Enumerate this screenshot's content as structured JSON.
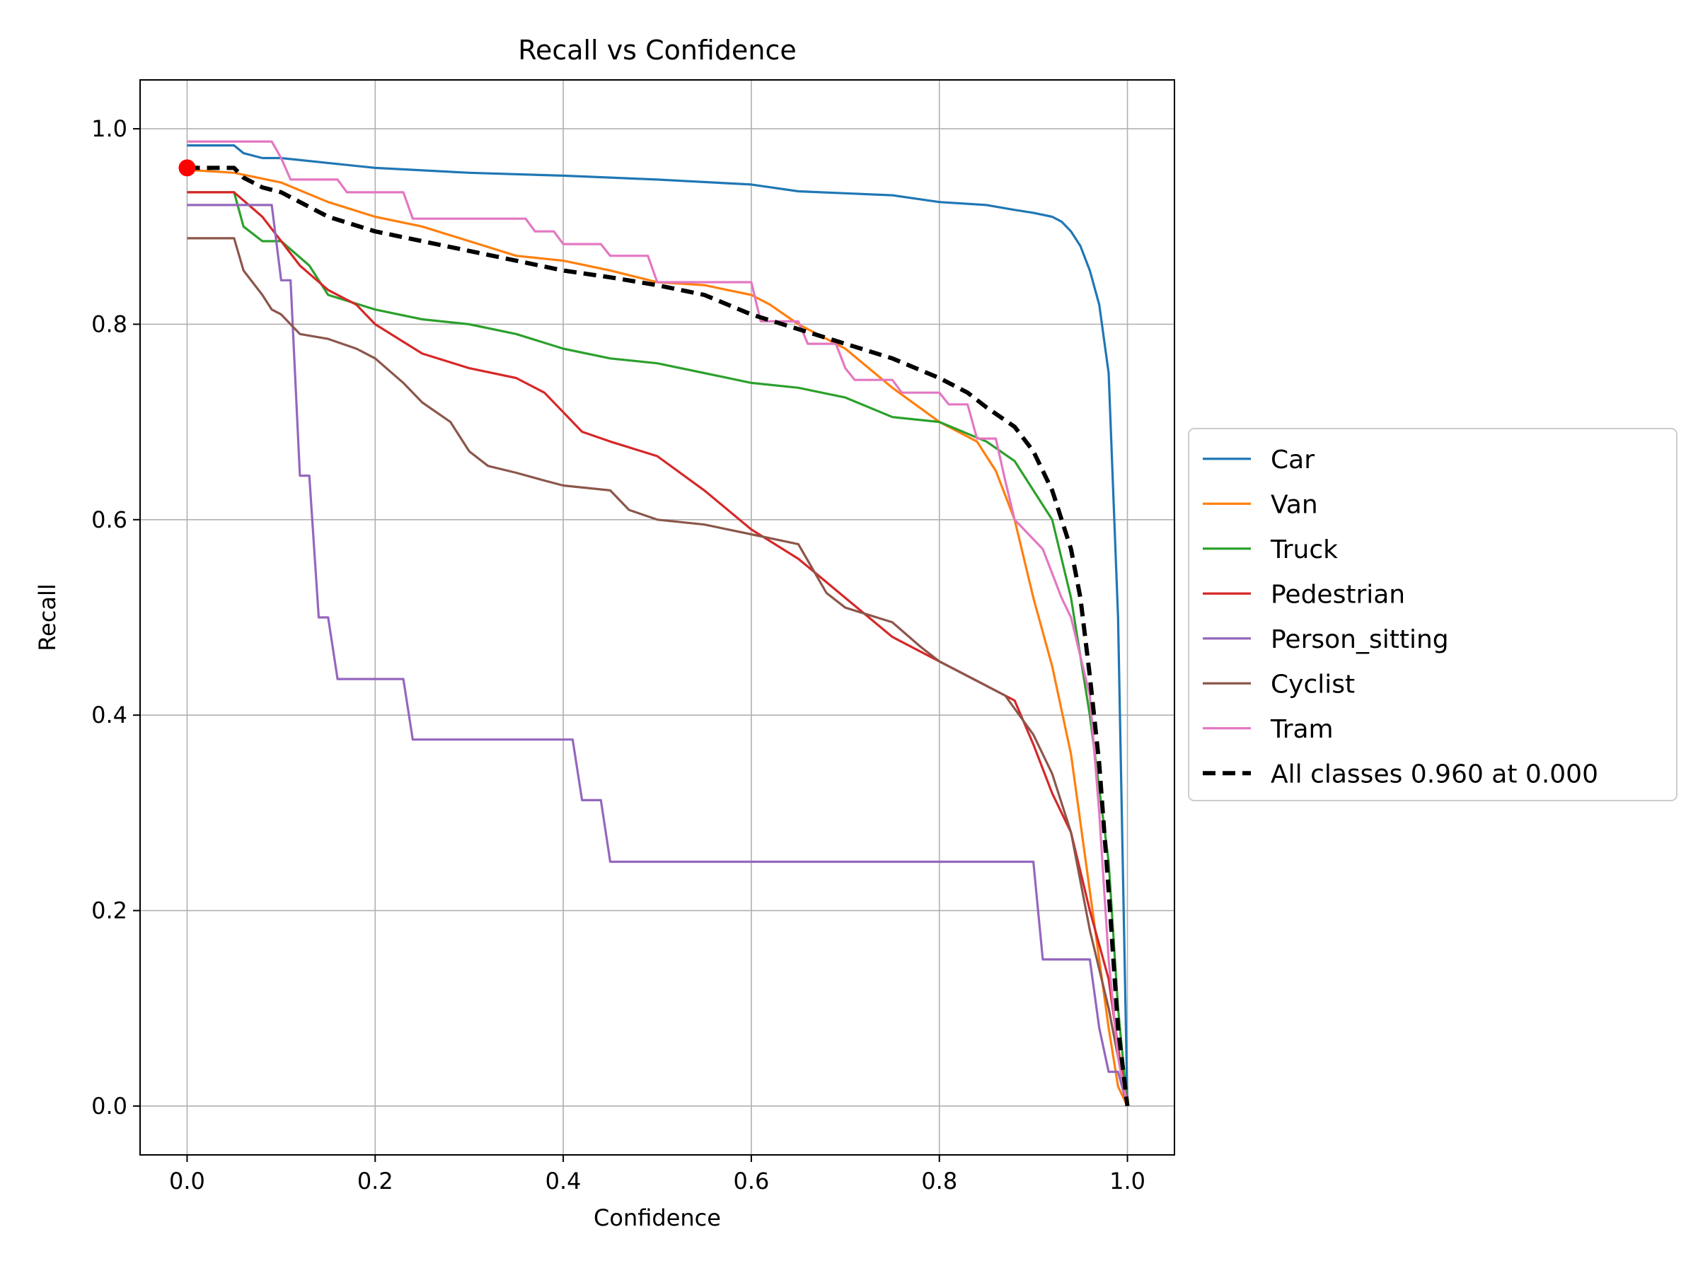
{
  "chart_data": {
    "type": "line",
    "title": "Recall vs Confidence",
    "xlabel": "Confidence",
    "ylabel": "Recall",
    "xlim": [
      -0.05,
      1.05
    ],
    "ylim": [
      -0.05,
      1.05
    ],
    "xticks": [
      0.0,
      0.2,
      0.4,
      0.6,
      0.8,
      1.0
    ],
    "xtick_labels": [
      "0.0",
      "0.2",
      "0.4",
      "0.6",
      "0.8",
      "1.0"
    ],
    "yticks": [
      0.0,
      0.2,
      0.4,
      0.6,
      0.8,
      1.0
    ],
    "ytick_labels": [
      "0.0",
      "0.2",
      "0.4",
      "0.6",
      "0.8",
      "1.0"
    ],
    "grid": true,
    "legend_position": "center-right-outside",
    "series": [
      {
        "name": "Car",
        "color": "#1f77b4",
        "dash": "solid",
        "x": [
          0.0,
          0.05,
          0.06,
          0.08,
          0.1,
          0.2,
          0.3,
          0.4,
          0.5,
          0.6,
          0.65,
          0.7,
          0.75,
          0.8,
          0.85,
          0.88,
          0.9,
          0.92,
          0.93,
          0.94,
          0.95,
          0.96,
          0.97,
          0.98,
          0.99,
          1.0
        ],
        "y": [
          0.983,
          0.983,
          0.975,
          0.97,
          0.97,
          0.96,
          0.955,
          0.952,
          0.948,
          0.943,
          0.936,
          0.934,
          0.932,
          0.925,
          0.922,
          0.917,
          0.914,
          0.91,
          0.905,
          0.895,
          0.88,
          0.855,
          0.82,
          0.75,
          0.5,
          0.0
        ]
      },
      {
        "name": "Van",
        "color": "#ff7f0e",
        "dash": "solid",
        "x": [
          0.0,
          0.05,
          0.1,
          0.15,
          0.2,
          0.25,
          0.3,
          0.35,
          0.4,
          0.45,
          0.5,
          0.55,
          0.6,
          0.62,
          0.65,
          0.7,
          0.75,
          0.8,
          0.84,
          0.86,
          0.88,
          0.9,
          0.92,
          0.94,
          0.96,
          0.98,
          0.99,
          1.0
        ],
        "y": [
          0.958,
          0.955,
          0.945,
          0.925,
          0.91,
          0.9,
          0.885,
          0.87,
          0.865,
          0.855,
          0.843,
          0.84,
          0.83,
          0.82,
          0.8,
          0.775,
          0.735,
          0.7,
          0.68,
          0.65,
          0.6,
          0.52,
          0.45,
          0.36,
          0.22,
          0.08,
          0.02,
          0.0
        ]
      },
      {
        "name": "Truck",
        "color": "#2ca02c",
        "dash": "solid",
        "x": [
          0.0,
          0.05,
          0.06,
          0.08,
          0.1,
          0.13,
          0.15,
          0.2,
          0.25,
          0.3,
          0.35,
          0.4,
          0.45,
          0.5,
          0.55,
          0.6,
          0.65,
          0.7,
          0.75,
          0.8,
          0.85,
          0.88,
          0.9,
          0.92,
          0.94,
          0.96,
          0.98,
          0.99,
          1.0
        ],
        "y": [
          0.935,
          0.935,
          0.9,
          0.885,
          0.885,
          0.86,
          0.83,
          0.815,
          0.805,
          0.8,
          0.79,
          0.775,
          0.765,
          0.76,
          0.75,
          0.74,
          0.735,
          0.725,
          0.705,
          0.7,
          0.68,
          0.66,
          0.63,
          0.6,
          0.52,
          0.4,
          0.25,
          0.1,
          0.0
        ]
      },
      {
        "name": "Pedestrian",
        "color": "#d62728",
        "dash": "solid",
        "x": [
          0.0,
          0.05,
          0.08,
          0.1,
          0.12,
          0.15,
          0.18,
          0.2,
          0.25,
          0.3,
          0.35,
          0.38,
          0.4,
          0.42,
          0.45,
          0.5,
          0.55,
          0.6,
          0.65,
          0.7,
          0.75,
          0.8,
          0.85,
          0.88,
          0.9,
          0.92,
          0.94,
          0.96,
          0.98,
          0.99,
          1.0
        ],
        "y": [
          0.935,
          0.935,
          0.91,
          0.885,
          0.86,
          0.835,
          0.82,
          0.8,
          0.77,
          0.755,
          0.745,
          0.73,
          0.71,
          0.69,
          0.68,
          0.665,
          0.63,
          0.59,
          0.56,
          0.52,
          0.48,
          0.455,
          0.43,
          0.415,
          0.37,
          0.32,
          0.28,
          0.2,
          0.13,
          0.06,
          0.0
        ]
      },
      {
        "name": "Person_sitting",
        "color": "#9467bd",
        "dash": "solid",
        "x": [
          0.0,
          0.09,
          0.1,
          0.11,
          0.12,
          0.13,
          0.14,
          0.15,
          0.16,
          0.23,
          0.24,
          0.41,
          0.42,
          0.44,
          0.45,
          0.9,
          0.91,
          0.96,
          0.97,
          0.98,
          0.99,
          1.0
        ],
        "y": [
          0.922,
          0.922,
          0.845,
          0.845,
          0.645,
          0.645,
          0.5,
          0.5,
          0.437,
          0.437,
          0.375,
          0.375,
          0.313,
          0.313,
          0.25,
          0.25,
          0.15,
          0.15,
          0.08,
          0.035,
          0.035,
          0.0
        ]
      },
      {
        "name": "Cyclist",
        "color": "#8c564b",
        "dash": "solid",
        "x": [
          0.0,
          0.05,
          0.06,
          0.08,
          0.09,
          0.1,
          0.12,
          0.15,
          0.18,
          0.2,
          0.23,
          0.25,
          0.28,
          0.3,
          0.32,
          0.35,
          0.38,
          0.4,
          0.45,
          0.47,
          0.5,
          0.55,
          0.6,
          0.65,
          0.68,
          0.7,
          0.75,
          0.78,
          0.8,
          0.85,
          0.87,
          0.9,
          0.92,
          0.94,
          0.96,
          0.98,
          0.99,
          1.0
        ],
        "y": [
          0.888,
          0.888,
          0.855,
          0.83,
          0.815,
          0.81,
          0.79,
          0.785,
          0.775,
          0.765,
          0.74,
          0.72,
          0.7,
          0.67,
          0.655,
          0.648,
          0.64,
          0.635,
          0.63,
          0.61,
          0.6,
          0.595,
          0.585,
          0.575,
          0.525,
          0.51,
          0.495,
          0.47,
          0.455,
          0.43,
          0.42,
          0.38,
          0.34,
          0.28,
          0.18,
          0.1,
          0.05,
          0.0
        ]
      },
      {
        "name": "Tram",
        "color": "#e377c2",
        "dash": "solid",
        "x": [
          0.0,
          0.09,
          0.1,
          0.11,
          0.16,
          0.17,
          0.23,
          0.24,
          0.36,
          0.37,
          0.39,
          0.4,
          0.44,
          0.45,
          0.49,
          0.5,
          0.6,
          0.61,
          0.65,
          0.66,
          0.69,
          0.7,
          0.71,
          0.75,
          0.76,
          0.8,
          0.81,
          0.83,
          0.84,
          0.86,
          0.87,
          0.88,
          0.9,
          0.91,
          0.92,
          0.93,
          0.94,
          0.96,
          0.97,
          0.98,
          0.99,
          1.0
        ],
        "y": [
          0.987,
          0.987,
          0.97,
          0.948,
          0.948,
          0.935,
          0.935,
          0.908,
          0.908,
          0.895,
          0.895,
          0.882,
          0.882,
          0.87,
          0.87,
          0.843,
          0.843,
          0.803,
          0.803,
          0.78,
          0.78,
          0.755,
          0.743,
          0.743,
          0.73,
          0.73,
          0.718,
          0.718,
          0.683,
          0.683,
          0.64,
          0.6,
          0.58,
          0.57,
          0.545,
          0.52,
          0.5,
          0.42,
          0.3,
          0.15,
          0.05,
          0.0
        ]
      },
      {
        "name": "All classes 0.960 at 0.000",
        "color": "#000000",
        "dash": "dashed",
        "x": [
          0.0,
          0.05,
          0.06,
          0.08,
          0.1,
          0.15,
          0.2,
          0.25,
          0.3,
          0.35,
          0.4,
          0.45,
          0.5,
          0.55,
          0.6,
          0.65,
          0.7,
          0.75,
          0.8,
          0.83,
          0.85,
          0.88,
          0.9,
          0.92,
          0.94,
          0.95,
          0.96,
          0.97,
          0.98,
          0.99,
          1.0
        ],
        "y": [
          0.96,
          0.96,
          0.95,
          0.94,
          0.935,
          0.91,
          0.895,
          0.885,
          0.875,
          0.865,
          0.855,
          0.848,
          0.84,
          0.83,
          0.81,
          0.795,
          0.78,
          0.765,
          0.745,
          0.73,
          0.715,
          0.695,
          0.67,
          0.63,
          0.57,
          0.52,
          0.44,
          0.35,
          0.22,
          0.08,
          0.0
        ]
      }
    ],
    "highlight_point": {
      "x": 0.0,
      "y": 0.96,
      "color": "#ff0000"
    }
  }
}
